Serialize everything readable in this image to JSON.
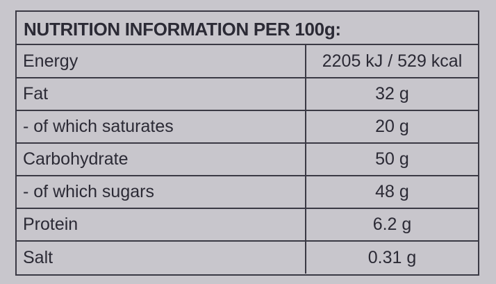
{
  "table": {
    "title": "NUTRITION INFORMATION PER 100g:",
    "rows": [
      [
        "Energy",
        "2205 kJ / 529 kcal"
      ],
      [
        "Fat",
        "32 g"
      ],
      [
        "- of which saturates",
        "20 g"
      ],
      [
        "Carbohydrate",
        "50 g"
      ],
      [
        "- of which sugars",
        "48 g"
      ],
      [
        "Protein",
        "6.2 g"
      ],
      [
        "Salt",
        "0.31 g"
      ]
    ]
  }
}
